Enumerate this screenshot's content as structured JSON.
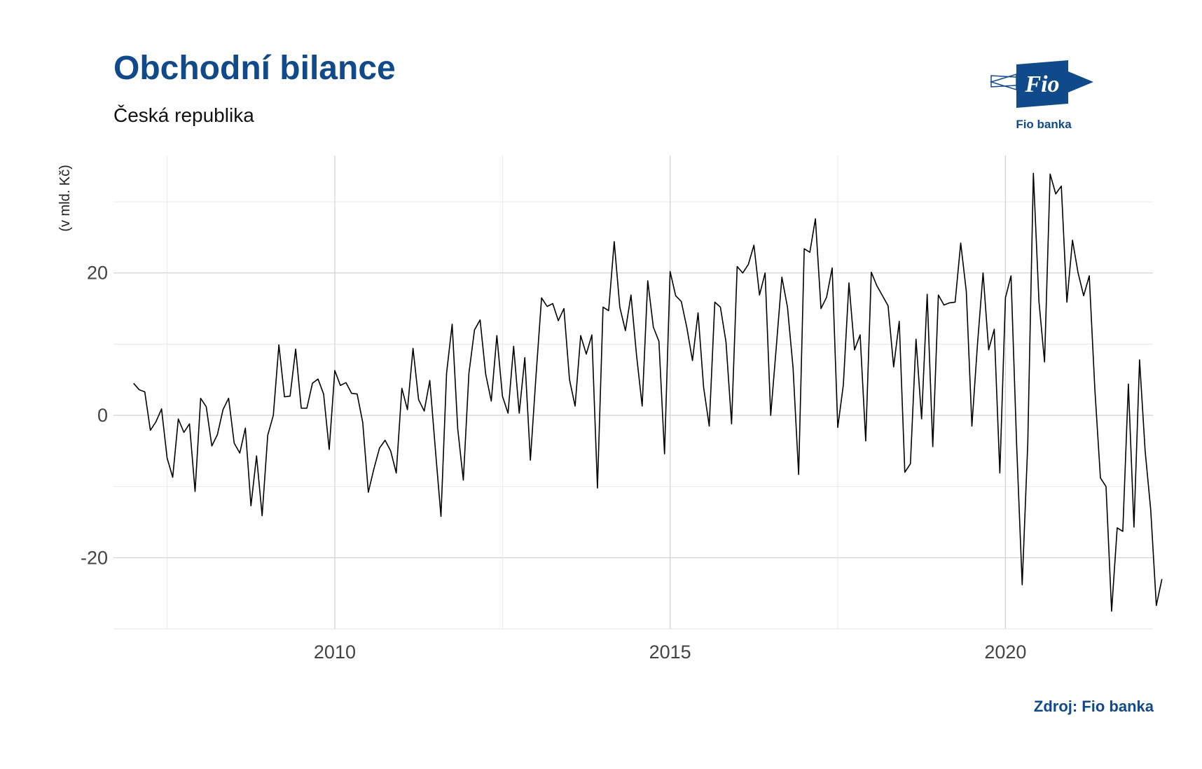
{
  "header": {
    "title": "Obchodní bilance",
    "subtitle": "Česká republika",
    "caption": "Zdroj: Fio banka"
  },
  "logo": {
    "mark_text": "Fio",
    "name": "Fio banka",
    "color": "#114a8b"
  },
  "chart_data": {
    "type": "line",
    "title": "Obchodní bilance",
    "subtitle": "Česká republika",
    "xlabel": "",
    "ylabel": "(v mld. Kč)",
    "x_ticks": [
      2010,
      2015,
      2020
    ],
    "y_ticks": [
      -20,
      0,
      20
    ],
    "xlim": [
      2006.7,
      2022.2
    ],
    "ylim": [
      -30,
      36.5
    ],
    "grid": true,
    "line_color": "#000000",
    "series": [
      {
        "start": "2007-01",
        "frequency": "monthly",
        "values": [
          4.5,
          3.6,
          3.3,
          -2.1,
          -0.9,
          0.9,
          -6.0,
          -8.7,
          -0.5,
          -2.4,
          -1.2,
          -10.7,
          2.4,
          1.2,
          -4.3,
          -2.7,
          0.8,
          2.4,
          -3.9,
          -5.3,
          -1.8,
          -12.7,
          -5.7,
          -14.1,
          -2.8,
          0.0,
          9.9,
          2.6,
          2.7,
          9.3,
          1.0,
          1.0,
          4.5,
          5.1,
          3.0,
          -4.8,
          6.3,
          4.2,
          4.6,
          3.1,
          3.0,
          -1.0,
          -10.8,
          -7.5,
          -4.6,
          -3.5,
          -5.0,
          -8.1,
          3.8,
          0.8,
          9.4,
          2.2,
          0.6,
          4.9,
          -4.8,
          -14.2,
          5.9,
          12.8,
          -1.9,
          -9.1,
          5.9,
          12.0,
          13.4,
          5.8,
          2.0,
          11.2,
          2.7,
          0.3,
          9.7,
          0.3,
          8.1,
          -6.3,
          5.5,
          16.5,
          15.3,
          15.7,
          13.3,
          15.0,
          5.0,
          1.3,
          11.2,
          8.6,
          11.3,
          -10.2,
          15.2,
          14.7,
          24.4,
          15.2,
          11.9,
          16.9,
          8.4,
          1.3,
          18.9,
          12.4,
          10.4,
          -5.4,
          20.2,
          16.8,
          16.0,
          12.3,
          7.7,
          14.4,
          3.9,
          -1.5,
          15.9,
          15.2,
          10.3,
          -1.2,
          20.9,
          20.0,
          21.2,
          23.9,
          16.9,
          20.0,
          0.0,
          9.6,
          19.4,
          15.2,
          6.7,
          -8.3,
          23.4,
          22.9,
          27.6,
          15.0,
          16.6,
          20.7,
          -1.7,
          4.3,
          18.6,
          9.2,
          11.3,
          -3.6,
          20.1,
          18.2,
          16.8,
          15.4,
          6.8,
          13.2,
          -8.0,
          -6.8,
          10.7,
          -0.5,
          17.0,
          -4.4,
          16.9,
          15.5,
          15.8,
          15.9,
          24.2,
          17.4,
          -1.5,
          10.0,
          20.0,
          9.2,
          12.1,
          -8.1,
          16.5,
          19.6,
          -4.0,
          -23.8,
          -3.9,
          34.0,
          16.0,
          7.5,
          33.9,
          31.1,
          32.2,
          15.9,
          24.6,
          20.0,
          16.8,
          19.6,
          3.7,
          -8.8,
          -10.0,
          -27.5,
          -15.8,
          -16.3,
          4.4,
          -15.7,
          7.8,
          -5.0,
          -13.3,
          -26.7,
          -23.0
        ]
      }
    ]
  }
}
